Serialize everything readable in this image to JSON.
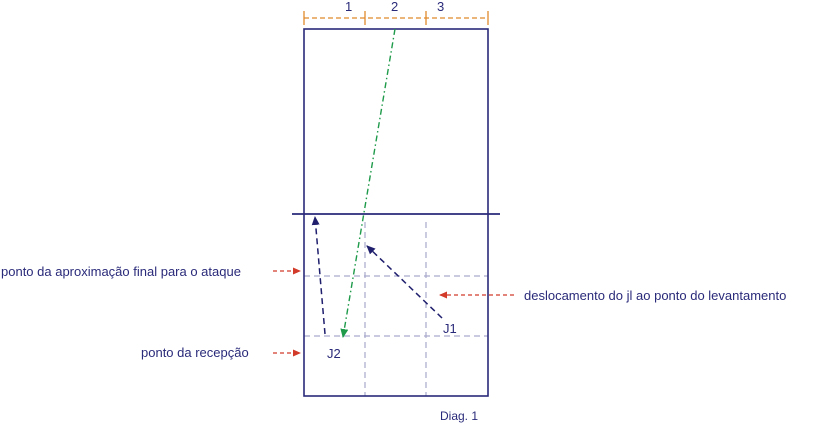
{
  "diagram": {
    "zones": [
      "1",
      "2",
      "3"
    ],
    "players": {
      "j1": "J1",
      "j2": "J2"
    },
    "labels": {
      "final_approach": "ponto da aproximação final para o ataque",
      "reception": "ponto da recepção",
      "setter_movement": "deslocamento do jl ao ponto do levantamento"
    },
    "caption": "Diag. 1",
    "colors": {
      "court": "#2a2a7a",
      "zone_marker": "#e08a2c",
      "grid": "#a9a9cc",
      "ball_path": "#1e9a4a",
      "player_path": "#1f1f6e",
      "label_arrow": "#d23a2a"
    }
  }
}
